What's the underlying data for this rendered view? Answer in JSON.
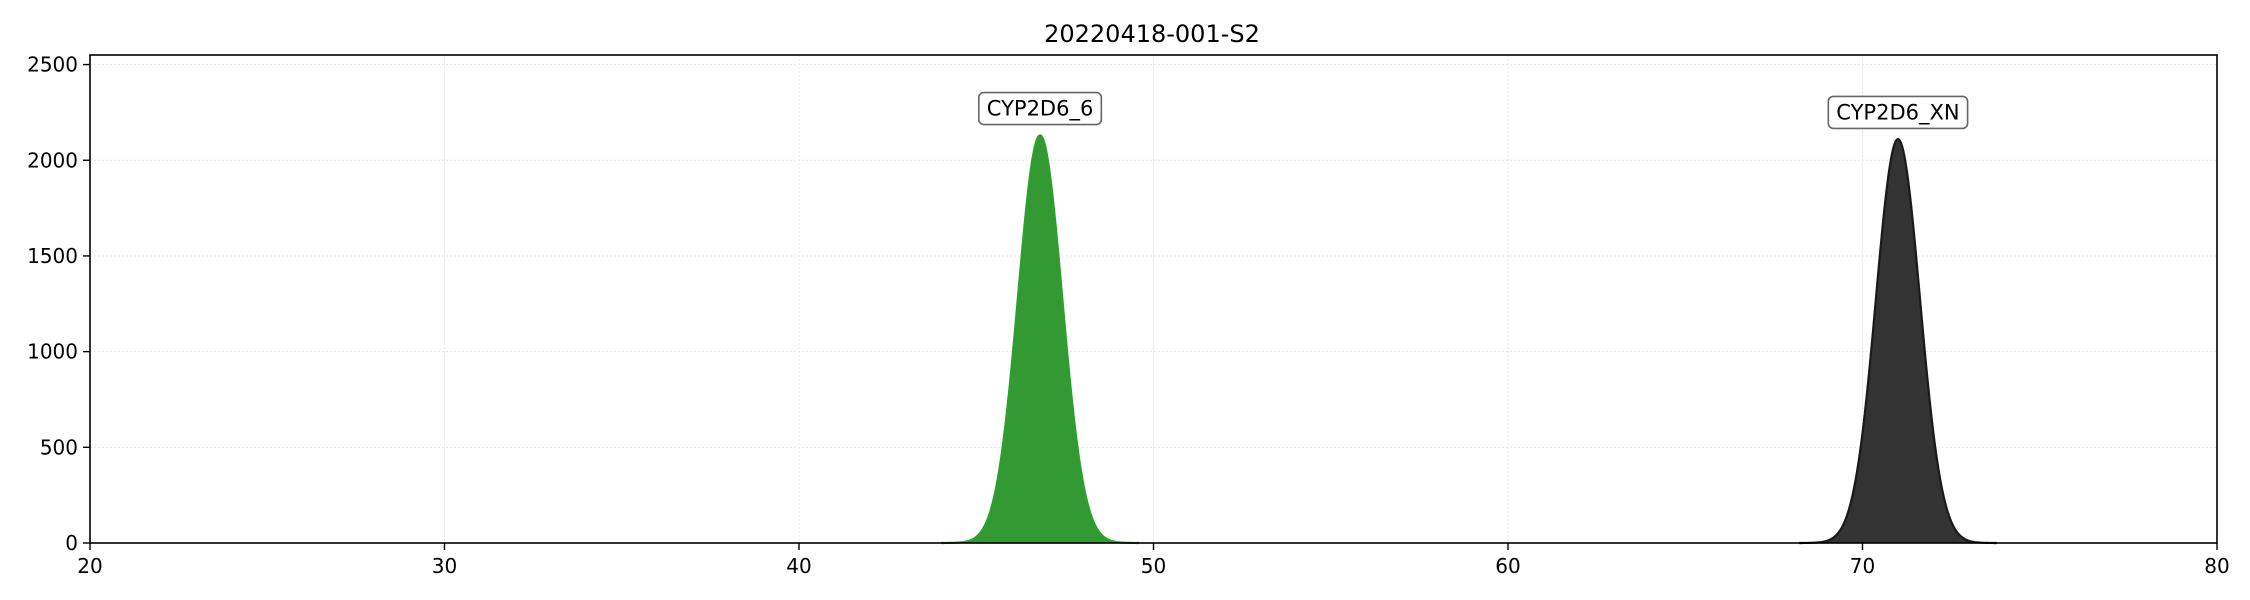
{
  "chart_data": {
    "type": "area",
    "title": "20220418-001-S2",
    "xlabel": "",
    "ylabel": "",
    "xlim": [
      20,
      80
    ],
    "ylim": [
      0,
      2550
    ],
    "x_ticks": [
      20,
      30,
      40,
      50,
      60,
      70,
      80
    ],
    "y_ticks": [
      0,
      500,
      1000,
      1500,
      2000,
      2500
    ],
    "grid": true,
    "legend": "none",
    "series": [
      {
        "name": "CYP2D6_6",
        "shape": "gaussian",
        "center": 46.8,
        "peak": 2130,
        "sigma": 0.62,
        "color": "#2ca02c",
        "fill_color": "#339933"
      },
      {
        "name": "CYP2D6_XN",
        "shape": "gaussian",
        "center": 71.0,
        "peak": 2110,
        "sigma": 0.62,
        "color": "#1a1a1a",
        "fill_color": "#333333"
      }
    ],
    "annotations": [
      {
        "text": "CYP2D6_6",
        "x": 46.8,
        "y": 2270
      },
      {
        "text": "CYP2D6_XN",
        "x": 71.0,
        "y": 2250
      }
    ]
  }
}
